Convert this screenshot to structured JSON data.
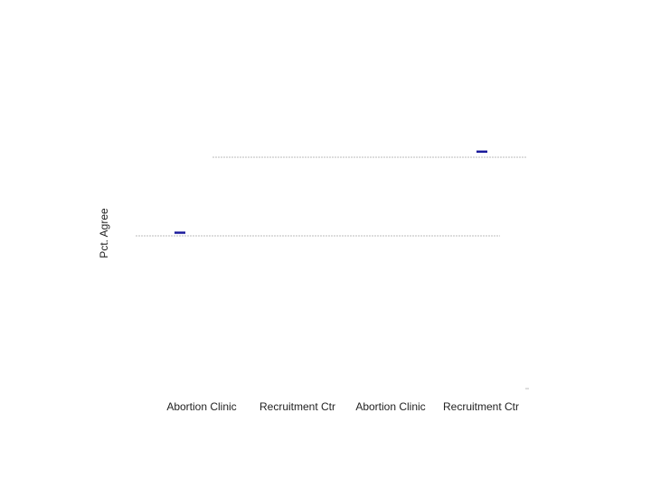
{
  "chart_data": {
    "type": "dot",
    "y_label": "Pct. Agree",
    "categories": [
      "Abortion Clinic",
      "Recruitment Ctr",
      "Abortion Clinic",
      "Recruitment Ctr"
    ],
    "values": [
      50,
      null,
      null,
      76
    ],
    "color": "#1a1a9c",
    "ylim": [
      0,
      100
    ]
  }
}
